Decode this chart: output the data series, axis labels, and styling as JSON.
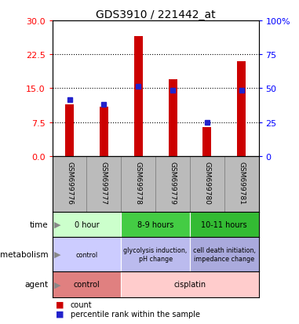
{
  "title": "GDS3910 / 221442_at",
  "samples": [
    "GSM699776",
    "GSM699777",
    "GSM699778",
    "GSM699779",
    "GSM699780",
    "GSM699781"
  ],
  "red_bars": [
    11.5,
    11.0,
    26.5,
    17.0,
    6.5,
    21.0
  ],
  "blue_markers": [
    12.5,
    11.5,
    15.5,
    14.5,
    7.5,
    14.5
  ],
  "left_ylim": [
    0,
    30
  ],
  "left_yticks": [
    0,
    7.5,
    15,
    22.5,
    30
  ],
  "right_yticks": [
    0,
    25,
    50,
    75,
    100
  ],
  "right_ylabel_ticks": [
    "0",
    "25",
    "50",
    "75",
    "100%"
  ],
  "bar_color": "#cc0000",
  "marker_color": "#2222cc",
  "background_color": "#ffffff",
  "plot_bg": "#ffffff",
  "time_groups": [
    {
      "label": "0 hour",
      "start": 0,
      "end": 2,
      "color": "#ccffcc"
    },
    {
      "label": "8-9 hours",
      "start": 2,
      "end": 4,
      "color": "#44cc44"
    },
    {
      "label": "10-11 hours",
      "start": 4,
      "end": 6,
      "color": "#33bb33"
    }
  ],
  "metabolism_groups": [
    {
      "label": "control",
      "start": 0,
      "end": 2,
      "color": "#ccccff"
    },
    {
      "label": "glycolysis induction,\npH change",
      "start": 2,
      "end": 4,
      "color": "#bbbbee"
    },
    {
      "label": "cell death initiation,\nimpedance change",
      "start": 4,
      "end": 6,
      "color": "#aaaadd"
    }
  ],
  "agent_groups": [
    {
      "label": "control",
      "start": 0,
      "end": 2,
      "color": "#e08080"
    },
    {
      "label": "cisplatin",
      "start": 2,
      "end": 6,
      "color": "#ffcccc"
    }
  ],
  "row_labels": [
    "time",
    "metabolism",
    "agent"
  ],
  "legend_red": "count",
  "legend_blue": "percentile rank within the sample",
  "bar_width": 0.25,
  "sample_bg": "#bbbbbb",
  "sample_divider": "#888888"
}
